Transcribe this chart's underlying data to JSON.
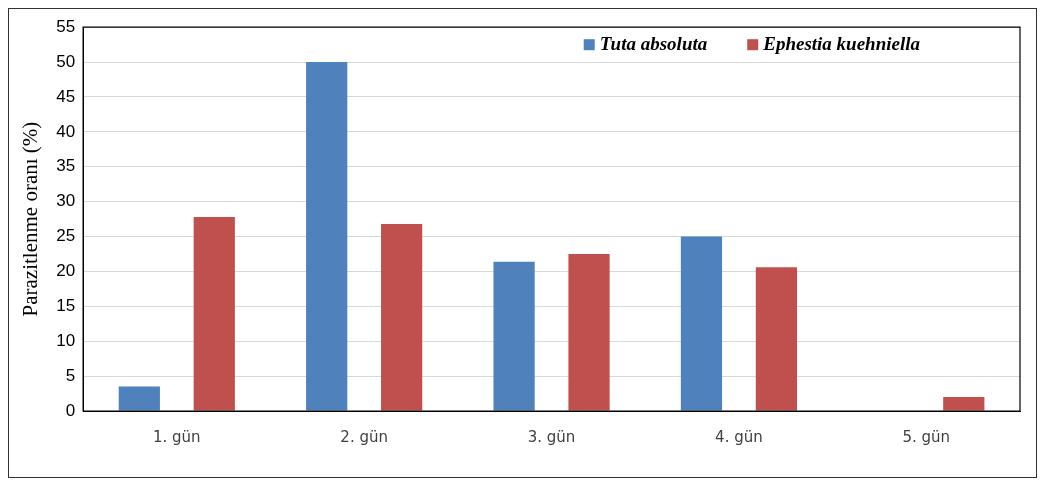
{
  "chart_data": {
    "type": "bar",
    "ylabel": "Parazitlenme oranı (%)",
    "categories": [
      "1. gün",
      "2. gün",
      "3. gün",
      "4. gün",
      "5. gün"
    ],
    "series": [
      {
        "name": "Tuta absoluta",
        "color": "#4f81bd",
        "values": [
          3.5,
          50,
          21.4,
          25,
          0
        ]
      },
      {
        "name": "Ephestia kuehniella",
        "color": "#c0504d",
        "values": [
          27.8,
          26.8,
          22.5,
          20.6,
          2
        ]
      }
    ],
    "ylim": [
      0,
      55
    ],
    "yticks": [
      0,
      5,
      10,
      15,
      20,
      25,
      30,
      35,
      40,
      45,
      50,
      55
    ],
    "grid": "y",
    "legend": "top right"
  }
}
